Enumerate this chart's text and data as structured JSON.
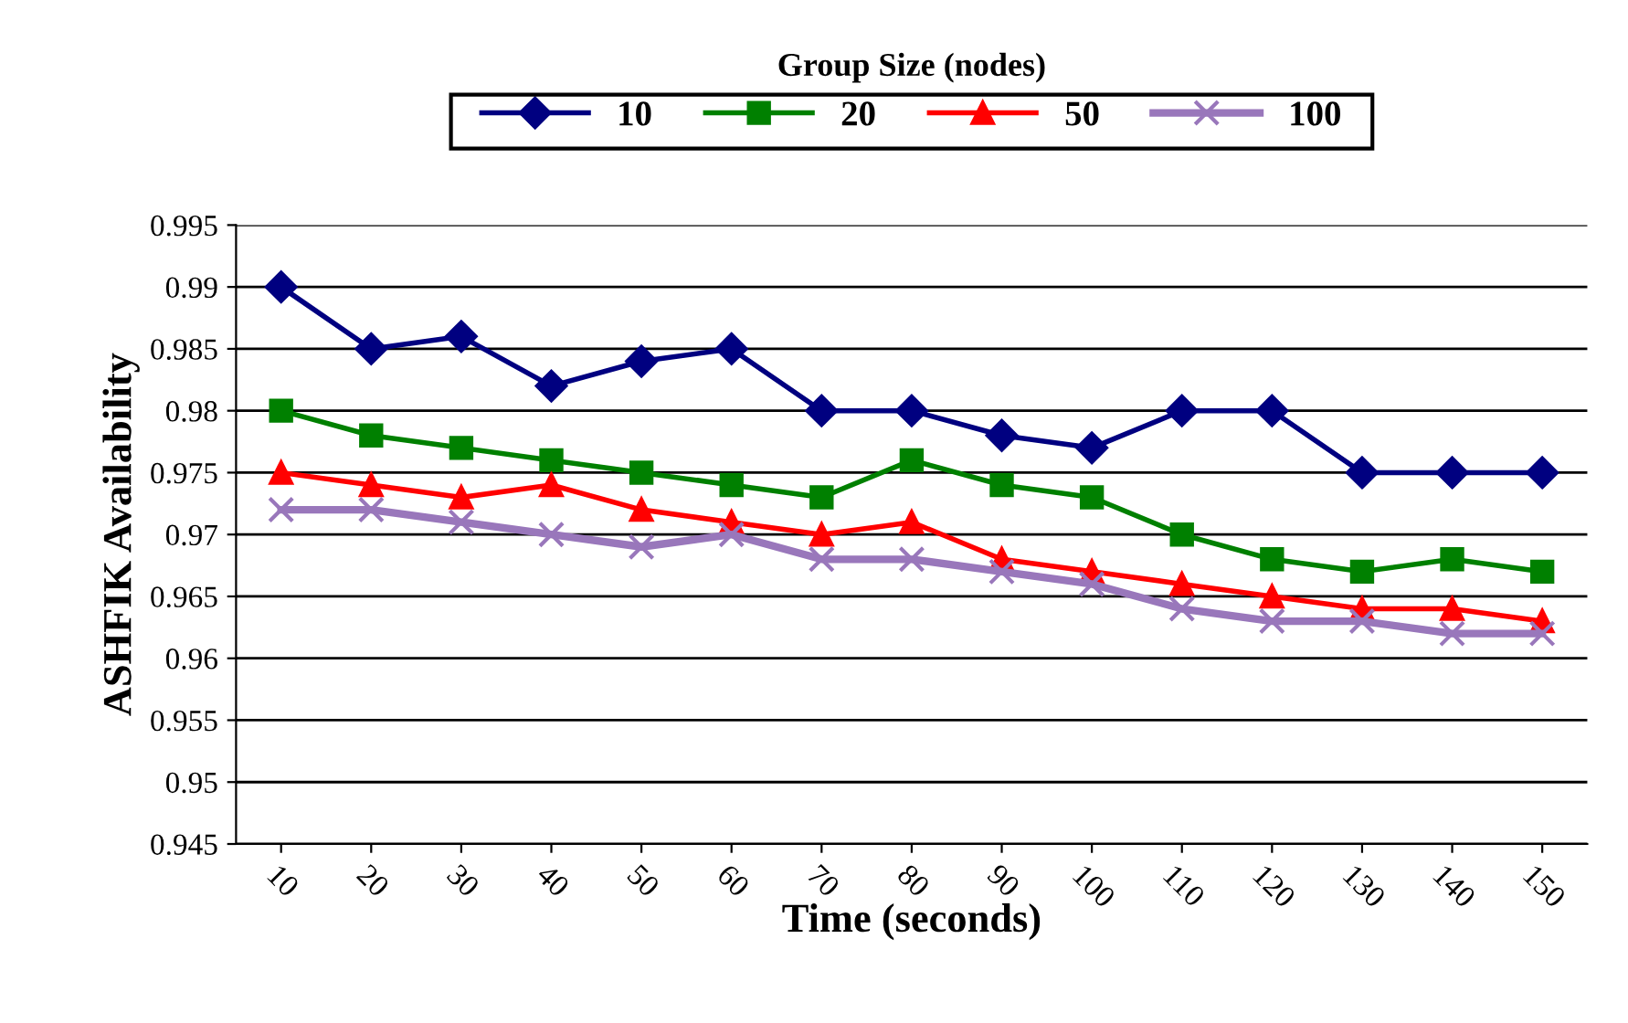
{
  "chart_data": {
    "type": "line",
    "xlabel": "Time (seconds)",
    "ylabel": "ASHFIK Availability",
    "legend_title": "Group Size (nodes)",
    "categories": [
      "10",
      "20",
      "30",
      "40",
      "50",
      "60",
      "70",
      "80",
      "90",
      "100",
      "110",
      "120",
      "130",
      "140",
      "150"
    ],
    "ylim": [
      0.945,
      0.995
    ],
    "yticks": [
      {
        "value": 0.945,
        "label": "0.945"
      },
      {
        "value": 0.95,
        "label": "0.95"
      },
      {
        "value": 0.955,
        "label": "0.955"
      },
      {
        "value": 0.96,
        "label": "0.96"
      },
      {
        "value": 0.965,
        "label": "0.965"
      },
      {
        "value": 0.97,
        "label": "0.97"
      },
      {
        "value": 0.975,
        "label": "0.975"
      },
      {
        "value": 0.98,
        "label": "0.98"
      },
      {
        "value": 0.985,
        "label": "0.985"
      },
      {
        "value": 0.99,
        "label": "0.99"
      },
      {
        "value": 0.995,
        "label": "0.995"
      }
    ],
    "grid": "y",
    "legend": "top",
    "line_style": "solid",
    "series": [
      {
        "name": "10",
        "color": "#000080",
        "marker": "diamond",
        "values": [
          0.99,
          0.985,
          0.986,
          0.982,
          0.984,
          0.985,
          0.98,
          0.98,
          0.978,
          0.977,
          0.98,
          0.98,
          0.975,
          0.975,
          0.975
        ]
      },
      {
        "name": "20",
        "color": "#008000",
        "marker": "square",
        "values": [
          0.98,
          0.978,
          0.977,
          0.976,
          0.975,
          0.974,
          0.973,
          0.976,
          0.974,
          0.973,
          0.97,
          0.968,
          0.967,
          0.968,
          0.967
        ]
      },
      {
        "name": "50",
        "color": "#ff0000",
        "marker": "triangle",
        "values": [
          0.975,
          0.974,
          0.973,
          0.974,
          0.972,
          0.971,
          0.97,
          0.971,
          0.968,
          0.967,
          0.966,
          0.965,
          0.964,
          0.964,
          0.963
        ]
      },
      {
        "name": "100",
        "color": "#9977bb",
        "marker": "cross",
        "values": [
          0.972,
          0.972,
          0.971,
          0.97,
          0.969,
          0.97,
          0.968,
          0.968,
          0.967,
          0.966,
          0.964,
          0.963,
          0.963,
          0.962,
          0.962
        ]
      }
    ]
  }
}
